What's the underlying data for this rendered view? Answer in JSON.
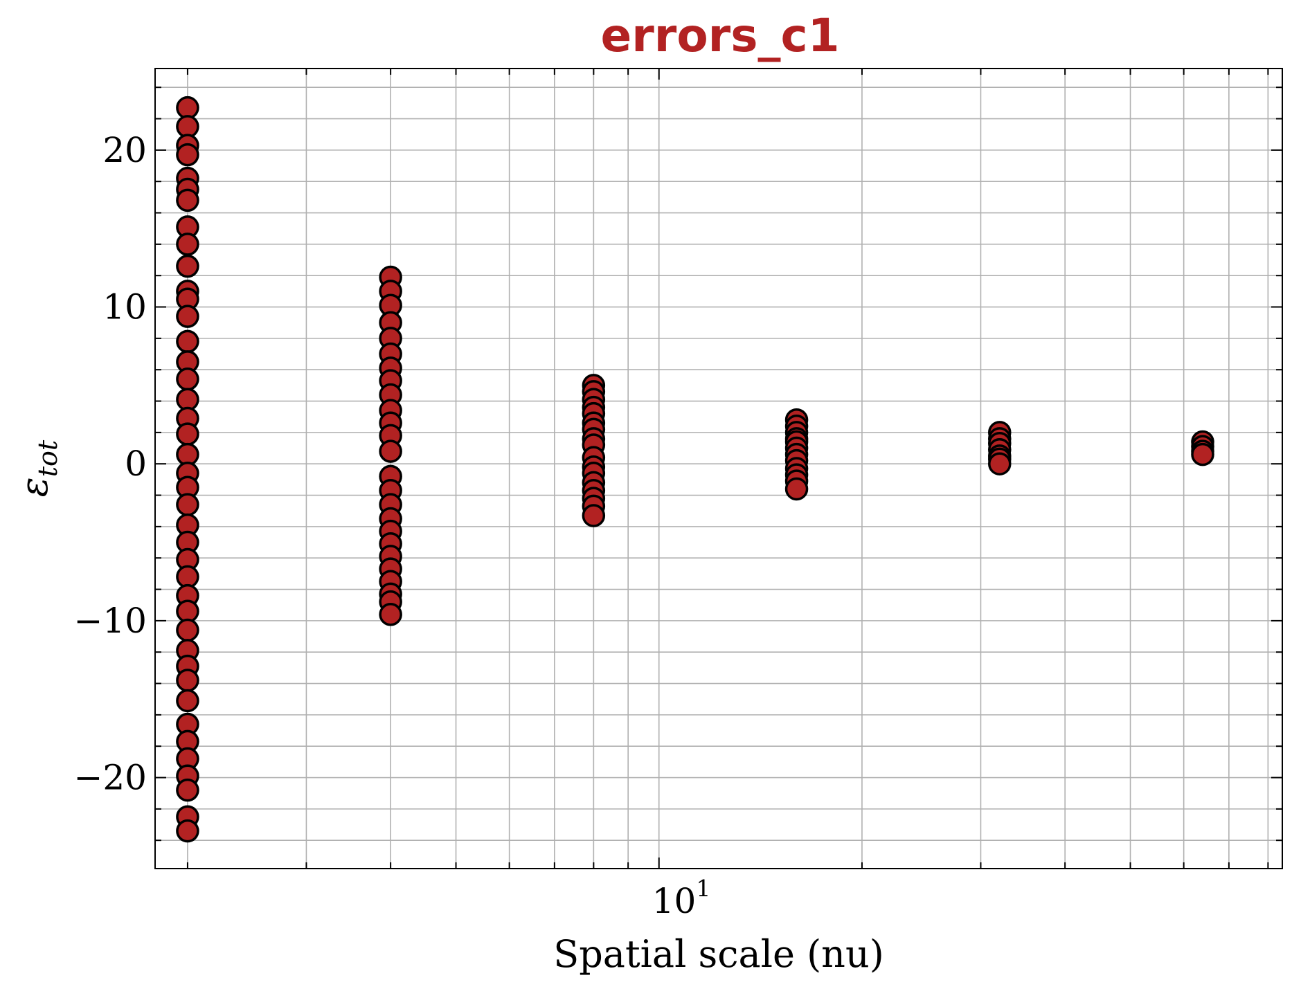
{
  "chart_data": {
    "type": "scatter",
    "title": "errors_c1",
    "xlabel": "Spatial scale (nu)",
    "ylabel_main": "ε",
    "ylabel_sub": "tot",
    "x_scale": "log",
    "xlim": [
      1.79,
      84
    ],
    "ylim": [
      -25.8,
      25.2
    ],
    "x_major_tick": {
      "value": 10,
      "label_base": "10",
      "label_exp": "1"
    },
    "y_ticks": [
      {
        "value": -20,
        "label": "−20"
      },
      {
        "value": -10,
        "label": "−10"
      },
      {
        "value": 0,
        "label": "0"
      },
      {
        "value": 10,
        "label": "10"
      },
      {
        "value": 20,
        "label": "20"
      }
    ],
    "grid": true,
    "marker_color": "#b22222",
    "marker_edge": "#000000",
    "series": [
      {
        "x": 2,
        "y": [
          22.7,
          21.5,
          20.3,
          19.7,
          18.2,
          17.5,
          16.8,
          15.1,
          14.0,
          12.6,
          11.0,
          10.5,
          9.4,
          7.8,
          6.5,
          5.4,
          4.1,
          2.9,
          1.9,
          0.6,
          -0.6,
          -1.5,
          -2.6,
          -3.9,
          -5.0,
          -6.1,
          -7.2,
          -8.4,
          -9.4,
          -10.6,
          -11.9,
          -12.9,
          -13.8,
          -15.1,
          -16.6,
          -17.7,
          -18.8,
          -19.9,
          -20.8,
          -22.5,
          -23.4
        ]
      },
      {
        "x": 4,
        "y": [
          11.9,
          11.0,
          10.1,
          9.0,
          8.0,
          7.0,
          6.1,
          5.3,
          4.4,
          3.4,
          2.6,
          1.8,
          0.8,
          -0.8,
          -1.7,
          -2.6,
          -3.5,
          -4.3,
          -5.1,
          -5.9,
          -6.7,
          -7.5,
          -8.3,
          -8.8,
          -9.6
        ]
      },
      {
        "x": 8,
        "y": [
          5.0,
          4.6,
          4.1,
          3.6,
          3.2,
          2.6,
          2.2,
          1.6,
          1.2,
          0.4,
          -0.2,
          -0.6,
          -1.2,
          -1.7,
          -2.2,
          -2.7,
          -3.3
        ]
      },
      {
        "x": 16,
        "y": [
          2.8,
          2.4,
          2.0,
          1.6,
          1.4,
          1.0,
          0.6,
          0.2,
          -0.3,
          -0.7,
          -1.1,
          -1.6
        ]
      },
      {
        "x": 32,
        "y": [
          2.0,
          1.6,
          1.3,
          0.9,
          0.5,
          0.3,
          0.0
        ]
      },
      {
        "x": 64,
        "y": [
          1.4,
          1.1,
          0.8,
          0.6
        ]
      }
    ]
  }
}
